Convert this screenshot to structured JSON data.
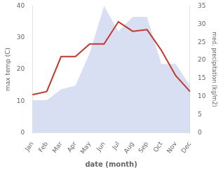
{
  "chart_data": {
    "type": "line",
    "xlabel": "date (month)",
    "ylabel": "max temp (C)",
    "y2label": "med. precipitation (kg/m2)",
    "categories": [
      "Jan",
      "Feb",
      "Mar",
      "Apr",
      "May",
      "Jun",
      "Jul",
      "Aug",
      "Sep",
      "Oct",
      "Nov",
      "Dec"
    ],
    "series": [
      {
        "type": "area",
        "color": "#b8c4e8",
        "axis": "y2",
        "values": [
          9.0,
          9.0,
          12.0,
          13.0,
          22.0,
          35.0,
          28.0,
          32.0,
          32.0,
          19.0,
          19.0,
          13.0
        ]
      },
      {
        "type": "line",
        "color": "#c0392b",
        "values": [
          12.0,
          13.0,
          24.0,
          24.0,
          28.0,
          28.0,
          35.0,
          32.0,
          32.5,
          26.0,
          18.0,
          13.0
        ]
      }
    ],
    "ylim": [
      0,
      40
    ],
    "yticks": [
      0,
      10,
      20,
      30,
      40
    ],
    "y2lim": [
      0,
      35
    ],
    "y2ticks": [
      0,
      5,
      10,
      15,
      20,
      25,
      30,
      35
    ],
    "grid": false
  }
}
